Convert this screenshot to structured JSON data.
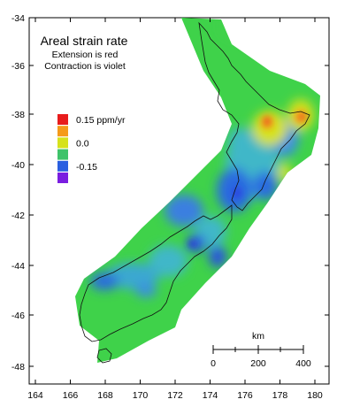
{
  "title": {
    "main": "Areal strain rate",
    "line2": "Extension is red",
    "line3": "Contraction is violet"
  },
  "legend": {
    "items": [
      {
        "label": "0.15 ppm/yr",
        "color": "#e81c1c"
      },
      {
        "label": "",
        "color": "#f59a1a"
      },
      {
        "label": "0.0",
        "color": "#d6e21c"
      },
      {
        "label": "",
        "color": "#3fc36a"
      },
      {
        "label": "-0.15",
        "color": "#2a5fe0"
      },
      {
        "label": "",
        "color": "#7a1ee0"
      }
    ]
  },
  "axes": {
    "x_ticks": [
      "164",
      "166",
      "168",
      "170",
      "172",
      "174",
      "176",
      "178",
      "180"
    ],
    "y_ticks": [
      "-34",
      "-36",
      "-38",
      "-40",
      "-42",
      "-44",
      "-46",
      "-48"
    ]
  },
  "scale_bar": {
    "unit": "km",
    "labels": [
      "0",
      "200",
      "400"
    ]
  },
  "colors": {
    "background_field": "#3fd24a",
    "extension": "#e81c1c",
    "contraction": "#7a1ee0",
    "neutral": "#d6e21c"
  },
  "icons": [
    "new-zealand-coastline",
    "strain-rate-field"
  ]
}
